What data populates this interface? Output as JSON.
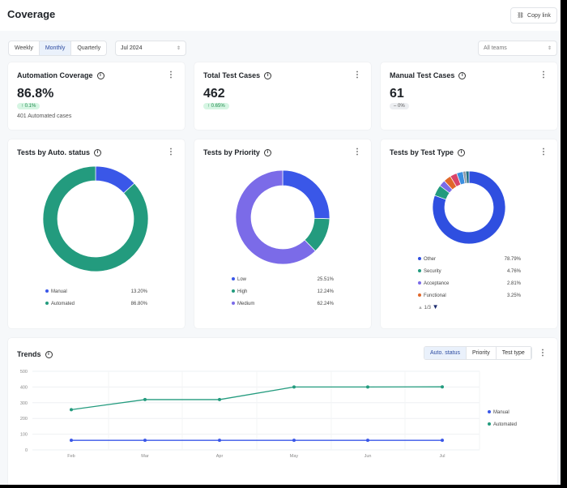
{
  "header": {
    "title": "Coverage",
    "copy_link": "Copy link",
    "link_icon": "link-icon"
  },
  "filters": {
    "periods": [
      "Weekly",
      "Monthly",
      "Quarterly"
    ],
    "active_period": "Monthly",
    "month": "Jul 2024",
    "team": "All teams"
  },
  "kpis": [
    {
      "title": "Automation Coverage",
      "value": "86.8%",
      "delta": "↑ 0.1%",
      "trend": "up",
      "sub": "401 Automated cases"
    },
    {
      "title": "Total Test Cases",
      "value": "462",
      "delta": "↑ 0.65%",
      "trend": "up"
    },
    {
      "title": "Manual Test Cases",
      "value": "61",
      "delta": "– 0%",
      "trend": "flat"
    }
  ],
  "chart_data": [
    {
      "type": "pie",
      "title": "Tests by Auto. status",
      "donut": true,
      "slices": [
        {
          "name": "Manual",
          "value": 13.2,
          "label": "13.20%",
          "color": "#3a57e8"
        },
        {
          "name": "Automated",
          "value": 86.8,
          "label": "86.80%",
          "color": "#239b7e"
        }
      ]
    },
    {
      "type": "pie",
      "title": "Tests by Priority",
      "donut": true,
      "slices": [
        {
          "name": "Low",
          "value": 25.51,
          "label": "25.51%",
          "color": "#3a57e8"
        },
        {
          "name": "High",
          "value": 12.24,
          "label": "12.24%",
          "color": "#239b7e"
        },
        {
          "name": "Medium",
          "value": 62.24,
          "label": "62.24%",
          "color": "#7b6be8"
        }
      ]
    },
    {
      "type": "pie",
      "title": "Tests by Test Type",
      "donut": true,
      "legend_page": "1/3",
      "slices": [
        {
          "name": "Other",
          "value": 78.79,
          "label": "78.79%",
          "color": "#2f4fe0"
        },
        {
          "name": "Security",
          "value": 4.76,
          "label": "4.76%",
          "color": "#239b7e"
        },
        {
          "name": "Acceptance",
          "value": 2.81,
          "label": "2.81%",
          "color": "#7b6be8"
        },
        {
          "name": "Functional",
          "value": 3.25,
          "label": "3.25%",
          "color": "#e0672a"
        },
        {
          "value": 3.0,
          "color": "#d9446a"
        },
        {
          "value": 2.8,
          "color": "#3b8fe0"
        },
        {
          "value": 1.2,
          "color": "#8a96a3"
        },
        {
          "value": 1.4,
          "color": "#1f6f86"
        }
      ]
    },
    {
      "type": "line",
      "title": "Trends",
      "categories": [
        "Feb",
        "Mar",
        "Apr",
        "May",
        "Jun",
        "Jul"
      ],
      "ylim": [
        0,
        500
      ],
      "yticks": [
        0,
        100,
        200,
        300,
        400,
        500
      ],
      "grid": true,
      "legend": "right",
      "series": [
        {
          "name": "Manual",
          "values": [
            61,
            61,
            61,
            61,
            61,
            61
          ],
          "color": "#3a57e8"
        },
        {
          "name": "Automated",
          "values": [
            256,
            320,
            320,
            400,
            400,
            401
          ],
          "color": "#239b7e"
        }
      ]
    }
  ],
  "trends": {
    "tabs": [
      "Auto. status",
      "Priority",
      "Test type"
    ],
    "active": "Auto. status"
  }
}
